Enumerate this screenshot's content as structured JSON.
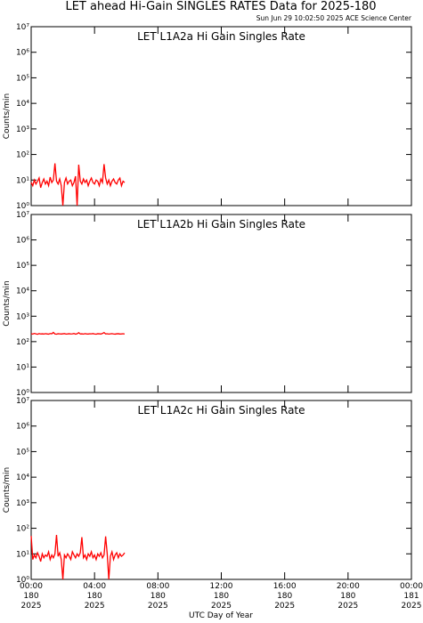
{
  "title": "LET ahead Hi-Gain SINGLES RATES Data for 2025-180",
  "timestamp": "Sun Jun 29 10:02:50 2025 ACE Science Center",
  "xlabel": "UTC Day of Year",
  "chart_data": [
    {
      "type": "line",
      "title": "LET L1A2a Hi Gain Singles Rate",
      "title_color": "#0000ff",
      "ylabel": "Counts/min",
      "log": true,
      "color": "#ff0000",
      "xlim": [
        0,
        24
      ],
      "xticks": [
        0,
        4,
        8,
        12,
        16,
        20,
        24
      ],
      "ylim": [
        1,
        10000000
      ],
      "yticks": [
        {
          "value": 1,
          "label": "10⁰"
        },
        {
          "value": 10,
          "label": "10¹"
        },
        {
          "value": 100,
          "label": "10²"
        },
        {
          "value": 1000,
          "label": "10³"
        },
        {
          "value": 10000,
          "label": "10⁴"
        },
        {
          "value": 100000,
          "label": "10⁵"
        },
        {
          "value": 1000000,
          "label": "10⁶"
        },
        {
          "value": 10000000,
          "label": "10⁷"
        }
      ],
      "x": [
        0,
        0.1,
        0.2,
        0.3,
        0.4,
        0.5,
        0.6,
        0.7,
        0.8,
        0.9,
        1,
        1.1,
        1.2,
        1.3,
        1.4,
        1.5,
        1.6,
        1.7,
        1.8,
        1.9,
        2,
        2.1,
        2.2,
        2.3,
        2.4,
        2.5,
        2.6,
        2.7,
        2.8,
        2.9,
        3,
        3.1,
        3.2,
        3.3,
        3.4,
        3.5,
        3.6,
        3.7,
        3.8,
        3.9,
        4,
        4.1,
        4.2,
        4.3,
        4.4,
        4.5,
        4.6,
        4.7,
        4.8,
        4.9,
        5,
        5.1,
        5.2,
        5.3,
        5.4,
        5.5,
        5.6,
        5.7,
        5.8,
        5.9
      ],
      "values": [
        8,
        6,
        10,
        7,
        9,
        12,
        5,
        8,
        11,
        7,
        9,
        6,
        13,
        8,
        10,
        45,
        9,
        7,
        11,
        6,
        1,
        8,
        12,
        7,
        9,
        10,
        6,
        8,
        14,
        1,
        40,
        9,
        7,
        11,
        8,
        10,
        6,
        9,
        12,
        8,
        7,
        10,
        9,
        6,
        11,
        8,
        42,
        12,
        7,
        10,
        6,
        9,
        11,
        8,
        7,
        10,
        12,
        6,
        9,
        8
      ]
    },
    {
      "type": "line",
      "title": "LET L1A2b Hi Gain Singles Rate",
      "title_color": "#0000ff",
      "ylabel": "Counts/min",
      "log": true,
      "color": "#ff0000",
      "xlim": [
        0,
        24
      ],
      "xticks": [
        0,
        4,
        8,
        12,
        16,
        20,
        24
      ],
      "ylim": [
        1,
        10000000
      ],
      "yticks": [
        {
          "value": 1,
          "label": "10⁰"
        },
        {
          "value": 10,
          "label": "10¹"
        },
        {
          "value": 100,
          "label": "10²"
        },
        {
          "value": 1000,
          "label": "10³"
        },
        {
          "value": 10000,
          "label": "10⁴"
        },
        {
          "value": 100000,
          "label": "10⁵"
        },
        {
          "value": 1000000,
          "label": "10⁶"
        },
        {
          "value": 10000000,
          "label": "10⁷"
        }
      ],
      "x": [
        0,
        0.1,
        0.2,
        0.3,
        0.4,
        0.5,
        0.6,
        0.7,
        0.8,
        0.9,
        1,
        1.1,
        1.2,
        1.3,
        1.4,
        1.5,
        1.6,
        1.7,
        1.8,
        1.9,
        2,
        2.1,
        2.2,
        2.3,
        2.4,
        2.5,
        2.6,
        2.7,
        2.8,
        2.9,
        3,
        3.1,
        3.2,
        3.3,
        3.4,
        3.5,
        3.6,
        3.7,
        3.8,
        3.9,
        4,
        4.1,
        4.2,
        4.3,
        4.4,
        4.5,
        4.6,
        4.7,
        4.8,
        4.9,
        5,
        5.1,
        5.2,
        5.3,
        5.4,
        5.5,
        5.6,
        5.7,
        5.8,
        5.9
      ],
      "values": [
        205,
        198,
        210,
        202,
        195,
        207,
        200,
        203,
        199,
        206,
        201,
        197,
        208,
        204,
        230,
        200,
        196,
        205,
        202,
        199,
        203,
        207,
        198,
        201,
        205,
        200,
        202,
        209,
        197,
        204,
        225,
        200,
        203,
        198,
        206,
        201,
        199,
        204,
        202,
        207,
        200,
        196,
        205,
        203,
        199,
        210,
        228,
        201,
        204,
        198,
        202,
        206,
        200,
        197,
        203,
        205,
        199,
        201,
        204,
        200
      ]
    },
    {
      "type": "line",
      "title": "LET L1A2c Hi Gain Singles Rate",
      "title_color": "#0000ff",
      "ylabel": "Counts/min",
      "log": true,
      "color": "#ff0000",
      "xlim": [
        0,
        24
      ],
      "xticks": [
        {
          "value": 0,
          "label": "00:00\n180\n2025"
        },
        {
          "value": 4,
          "label": "04:00\n180\n2025"
        },
        {
          "value": 8,
          "label": "08:00\n180\n2025"
        },
        {
          "value": 12,
          "label": "12:00\n180\n2025"
        },
        {
          "value": 16,
          "label": "16:00\n180\n2025"
        },
        {
          "value": 20,
          "label": "20:00\n180\n2025"
        },
        {
          "value": 24,
          "label": "00:00\n181\n2025"
        }
      ],
      "ylim": [
        1,
        10000000
      ],
      "yticks": [
        {
          "value": 1,
          "label": "10⁰"
        },
        {
          "value": 10,
          "label": "10¹"
        },
        {
          "value": 100,
          "label": "10²"
        },
        {
          "value": 1000,
          "label": "10³"
        },
        {
          "value": 10000,
          "label": "10⁴"
        },
        {
          "value": 100000,
          "label": "10⁵"
        },
        {
          "value": 1000000,
          "label": "10⁶"
        },
        {
          "value": 10000000,
          "label": "10⁷"
        }
      ],
      "x": [
        0,
        0.1,
        0.2,
        0.3,
        0.4,
        0.5,
        0.6,
        0.7,
        0.8,
        0.9,
        1,
        1.1,
        1.2,
        1.3,
        1.4,
        1.5,
        1.6,
        1.7,
        1.8,
        1.9,
        2,
        2.1,
        2.2,
        2.3,
        2.4,
        2.5,
        2.6,
        2.7,
        2.8,
        2.9,
        3,
        3.1,
        3.2,
        3.3,
        3.4,
        3.5,
        3.6,
        3.7,
        3.8,
        3.9,
        4,
        4.1,
        4.2,
        4.3,
        4.4,
        4.5,
        4.6,
        4.7,
        4.8,
        4.9,
        5,
        5.1,
        5.2,
        5.3,
        5.4,
        5.5,
        5.6,
        5.7,
        5.8,
        5.9
      ],
      "values": [
        50,
        6,
        9,
        7,
        11,
        8,
        5,
        10,
        7,
        9,
        8,
        12,
        6,
        9,
        7,
        10,
        55,
        8,
        11,
        6,
        1,
        9,
        7,
        10,
        8,
        6,
        12,
        9,
        7,
        10,
        8,
        11,
        45,
        7,
        9,
        6,
        10,
        8,
        12,
        7,
        9,
        6,
        10,
        8,
        11,
        7,
        9,
        48,
        10,
        1,
        8,
        12,
        6,
        9,
        11,
        7,
        10,
        8,
        9,
        11
      ]
    }
  ]
}
